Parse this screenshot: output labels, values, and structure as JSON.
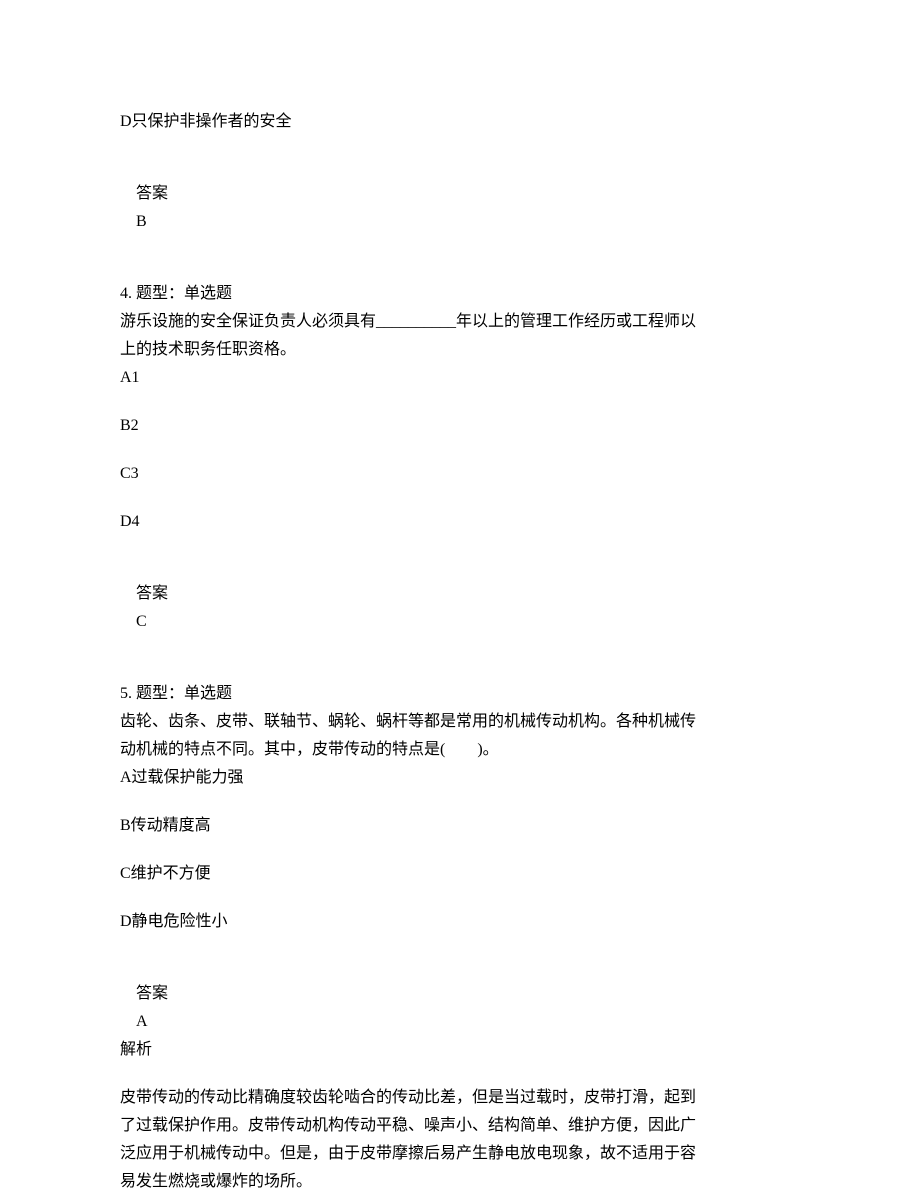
{
  "q3_partial": {
    "option_d": "D只保护非操作者的安全",
    "answer_label": "答案",
    "answer": "B"
  },
  "q4": {
    "header": "4. 题型：单选题",
    "stem_line1": "游乐设施的安全保证负责人必须具有__________年以上的管理工作经历或工程师以",
    "stem_line2": "上的技术职务任职资格。",
    "option_a": "A1",
    "option_b": "B2",
    "option_c": "C3",
    "option_d": "D4",
    "answer_label": "答案",
    "answer": "C"
  },
  "q5": {
    "header": "5. 题型：单选题",
    "stem_line1": "齿轮、齿条、皮带、联轴节、蜗轮、蜗杆等都是常用的机械传动机构。各种机械传",
    "stem_line2": "动机械的特点不同。其中，皮带传动的特点是(　　)。",
    "option_a": "A过载保护能力强",
    "option_b": "B传动精度高",
    "option_c": "C维护不方便",
    "option_d": "D静电危险性小",
    "answer_label": "答案",
    "answer": "A",
    "explanation_label": "解析",
    "explanation_line1": "皮带传动的传动比精确度较齿轮啮合的传动比差，但是当过载时，皮带打滑，起到",
    "explanation_line2": "了过载保护作用。皮带传动机构传动平稳、噪声小、结构简单、维护方便，因此广",
    "explanation_line3": "泛应用于机械传动中。但是，由于皮带摩擦后易产生静电放电现象，故不适用于容",
    "explanation_line4": "易发生燃烧或爆炸的场所。"
  }
}
